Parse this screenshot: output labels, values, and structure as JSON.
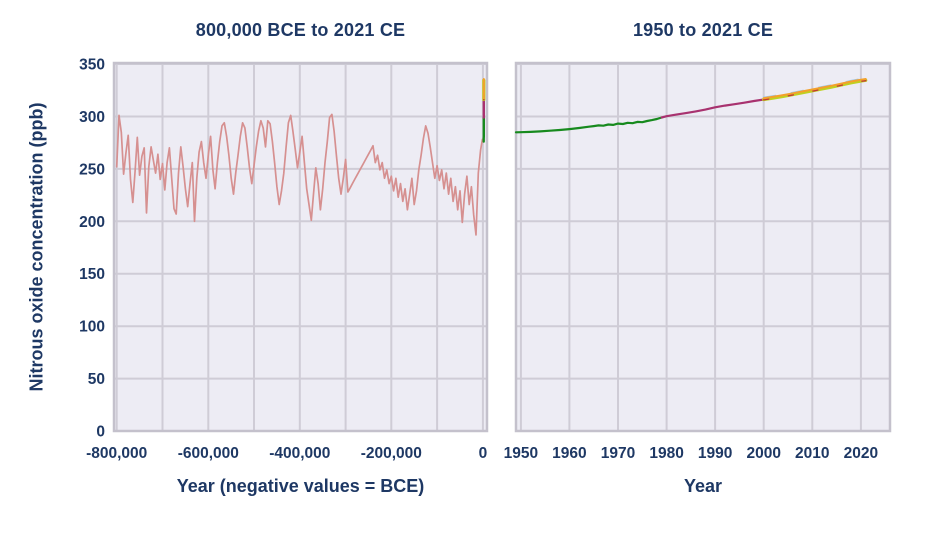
{
  "page": {
    "background": "#ffffff",
    "text_color": "#1e3864"
  },
  "series_data": {
    "ice_core": [
      [
        -800000,
        252
      ],
      [
        -795000,
        301
      ],
      [
        -790000,
        285
      ],
      [
        -785000,
        245
      ],
      [
        -780000,
        265
      ],
      [
        -775000,
        282
      ],
      [
        -770000,
        240
      ],
      [
        -765000,
        218
      ],
      [
        -760000,
        248
      ],
      [
        -755000,
        280
      ],
      [
        -750000,
        244
      ],
      [
        -745000,
        262
      ],
      [
        -740000,
        270
      ],
      [
        -735000,
        208
      ],
      [
        -730000,
        252
      ],
      [
        -725000,
        271
      ],
      [
        -720000,
        258
      ],
      [
        -715000,
        246
      ],
      [
        -710000,
        264
      ],
      [
        -705000,
        240
      ],
      [
        -700000,
        255
      ],
      [
        -695000,
        230
      ],
      [
        -690000,
        256
      ],
      [
        -685000,
        270
      ],
      [
        -680000,
        241
      ],
      [
        -675000,
        212
      ],
      [
        -670000,
        207
      ],
      [
        -665000,
        246
      ],
      [
        -660000,
        271
      ],
      [
        -655000,
        252
      ],
      [
        -650000,
        231
      ],
      [
        -645000,
        214
      ],
      [
        -640000,
        236
      ],
      [
        -635000,
        256
      ],
      [
        -630000,
        200
      ],
      [
        -625000,
        241
      ],
      [
        -620000,
        266
      ],
      [
        -615000,
        276
      ],
      [
        -610000,
        256
      ],
      [
        -605000,
        241
      ],
      [
        -600000,
        263
      ],
      [
        -595000,
        281
      ],
      [
        -590000,
        249
      ],
      [
        -585000,
        231
      ],
      [
        -580000,
        256
      ],
      [
        -575000,
        276
      ],
      [
        -570000,
        291
      ],
      [
        -565000,
        294
      ],
      [
        -560000,
        281
      ],
      [
        -555000,
        263
      ],
      [
        -550000,
        241
      ],
      [
        -545000,
        226
      ],
      [
        -540000,
        246
      ],
      [
        -535000,
        263
      ],
      [
        -530000,
        281
      ],
      [
        -525000,
        294
      ],
      [
        -520000,
        289
      ],
      [
        -515000,
        271
      ],
      [
        -510000,
        251
      ],
      [
        -505000,
        236
      ],
      [
        -500000,
        253
      ],
      [
        -495000,
        271
      ],
      [
        -490000,
        286
      ],
      [
        -485000,
        296
      ],
      [
        -480000,
        289
      ],
      [
        -475000,
        271
      ],
      [
        -470000,
        296
      ],
      [
        -465000,
        293
      ],
      [
        -460000,
        276
      ],
      [
        -455000,
        256
      ],
      [
        -450000,
        233
      ],
      [
        -445000,
        216
      ],
      [
        -440000,
        229
      ],
      [
        -435000,
        246
      ],
      [
        -430000,
        271
      ],
      [
        -425000,
        294
      ],
      [
        -420000,
        301
      ],
      [
        -415000,
        286
      ],
      [
        -410000,
        269
      ],
      [
        -405000,
        251
      ],
      [
        -400000,
        266
      ],
      [
        -395000,
        281
      ],
      [
        -390000,
        256
      ],
      [
        -385000,
        231
      ],
      [
        -380000,
        216
      ],
      [
        -375000,
        201
      ],
      [
        -370000,
        226
      ],
      [
        -365000,
        251
      ],
      [
        -360000,
        236
      ],
      [
        -355000,
        211
      ],
      [
        -350000,
        231
      ],
      [
        -345000,
        256
      ],
      [
        -340000,
        276
      ],
      [
        -335000,
        299
      ],
      [
        -330000,
        302
      ],
      [
        -325000,
        286
      ],
      [
        -320000,
        263
      ],
      [
        -315000,
        241
      ],
      [
        -310000,
        226
      ],
      [
        -305000,
        241
      ],
      [
        -300000,
        259
      ],
      [
        -295000,
        228
      ],
      [
        -290000,
        232
      ],
      [
        -285000,
        236
      ],
      [
        -280000,
        240
      ],
      [
        -275000,
        244
      ],
      [
        -270000,
        248
      ],
      [
        -265000,
        252
      ],
      [
        -260000,
        256
      ],
      [
        -255000,
        260
      ],
      [
        -250000,
        264
      ],
      [
        -245000,
        268
      ],
      [
        -240000,
        272
      ],
      [
        -235000,
        256
      ],
      [
        -230000,
        263
      ],
      [
        -225000,
        249
      ],
      [
        -220000,
        256
      ],
      [
        -215000,
        241
      ],
      [
        -210000,
        249
      ],
      [
        -205000,
        236
      ],
      [
        -200000,
        243
      ],
      [
        -195000,
        229
      ],
      [
        -190000,
        241
      ],
      [
        -185000,
        223
      ],
      [
        -180000,
        236
      ],
      [
        -175000,
        219
      ],
      [
        -170000,
        231
      ],
      [
        -165000,
        211
      ],
      [
        -160000,
        226
      ],
      [
        -155000,
        241
      ],
      [
        -150000,
        216
      ],
      [
        -145000,
        229
      ],
      [
        -140000,
        249
      ],
      [
        -135000,
        263
      ],
      [
        -130000,
        279
      ],
      [
        -125000,
        291
      ],
      [
        -120000,
        284
      ],
      [
        -115000,
        271
      ],
      [
        -110000,
        256
      ],
      [
        -105000,
        241
      ],
      [
        -100000,
        253
      ],
      [
        -95000,
        239
      ],
      [
        -90000,
        249
      ],
      [
        -85000,
        231
      ],
      [
        -80000,
        246
      ],
      [
        -75000,
        226
      ],
      [
        -70000,
        241
      ],
      [
        -65000,
        219
      ],
      [
        -60000,
        233
      ],
      [
        -55000,
        211
      ],
      [
        -50000,
        229
      ],
      [
        -45000,
        199
      ],
      [
        -40000,
        226
      ],
      [
        -35000,
        243
      ],
      [
        -30000,
        216
      ],
      [
        -25000,
        233
      ],
      [
        -20000,
        206
      ],
      [
        -15000,
        187
      ],
      [
        -10000,
        246
      ],
      [
        -5000,
        268
      ],
      [
        -1000,
        278
      ]
    ],
    "record_1755_1979": [
      [
        1755,
        276
      ],
      [
        1800,
        277.5
      ],
      [
        1850,
        279
      ],
      [
        1900,
        281
      ],
      [
        1930,
        283
      ],
      [
        1950,
        285
      ],
      [
        1960,
        288
      ],
      [
        1970,
        293
      ],
      [
        1979,
        299.5
      ]
    ],
    "record_1950_1979": [
      [
        1949,
        284.9
      ],
      [
        1950,
        285
      ],
      [
        1952,
        285.3
      ],
      [
        1954,
        285.8
      ],
      [
        1956,
        286.4
      ],
      [
        1958,
        287.1
      ],
      [
        1960,
        288
      ],
      [
        1962,
        289
      ],
      [
        1964,
        290.2
      ],
      [
        1965,
        290.8
      ],
      [
        1966,
        291.5
      ],
      [
        1967,
        291.2
      ],
      [
        1968,
        292.3
      ],
      [
        1969,
        292
      ],
      [
        1970,
        293.2
      ],
      [
        1971,
        292.8
      ],
      [
        1972,
        294
      ],
      [
        1973,
        293.6
      ],
      [
        1974,
        294.8
      ],
      [
        1975,
        294.5
      ],
      [
        1976,
        295.7
      ],
      [
        1977,
        296.5
      ],
      [
        1978,
        297.6
      ],
      [
        1979,
        299
      ]
    ],
    "record_1979_2000": [
      [
        1979,
        299
      ],
      [
        1980,
        300.3
      ],
      [
        1982,
        301.8
      ],
      [
        1984,
        303.2
      ],
      [
        1986,
        304.8
      ],
      [
        1988,
        306.6
      ],
      [
        1990,
        308.7
      ],
      [
        1992,
        310.4
      ],
      [
        1994,
        311.7
      ],
      [
        1996,
        313.1
      ],
      [
        1998,
        314.8
      ],
      [
        2000,
        316.2
      ]
    ],
    "record_2000_2021": [
      [
        2000,
        316.2
      ],
      [
        2002,
        317.6
      ],
      [
        2004,
        319.1
      ],
      [
        2006,
        320.9
      ],
      [
        2008,
        322.7
      ],
      [
        2010,
        324.5
      ],
      [
        2012,
        326.3
      ],
      [
        2014,
        328.1
      ],
      [
        2016,
        330.1
      ],
      [
        2018,
        332.1
      ],
      [
        2020,
        333.8
      ],
      [
        2021,
        334.5
      ]
    ]
  },
  "chart_data": [
    {
      "id": "left-panel",
      "type": "line",
      "title": "800,000 BCE to 2021 CE",
      "xlabel": "Year (negative values = BCE)",
      "ylabel": "Nitrous oxide concentration (ppb)",
      "xlim": [
        -806000,
        9000
      ],
      "ylim": [
        0,
        351
      ],
      "grid": true,
      "plot_bg": "#edecf4",
      "grid_color": "#cfccd6",
      "border_color": "#c4c1cc",
      "show_yticks": true,
      "xgrid": [
        -800000,
        -700000,
        -600000,
        -500000,
        -400000,
        -300000,
        -200000,
        -100000,
        0
      ],
      "ygrid": [
        0,
        50,
        100,
        150,
        200,
        250,
        300,
        350
      ],
      "xticks": [
        {
          "v": -800000,
          "label": "-800,000"
        },
        {
          "v": -600000,
          "label": "-600,000"
        },
        {
          "v": -400000,
          "label": "-400,000"
        },
        {
          "v": -200000,
          "label": "-200,000"
        },
        {
          "v": 0,
          "label": "0"
        }
      ],
      "yticks": [
        {
          "v": 0,
          "label": "0"
        },
        {
          "v": 50,
          "label": "50"
        },
        {
          "v": 100,
          "label": "100"
        },
        {
          "v": 150,
          "label": "150"
        },
        {
          "v": 200,
          "label": "200"
        },
        {
          "v": 250,
          "label": "250"
        },
        {
          "v": 300,
          "label": "300"
        },
        {
          "v": 350,
          "label": "350"
        }
      ],
      "series": [
        {
          "data": "ice_core",
          "name": "ice-core-line",
          "color": "#d69090",
          "width": 1.7
        },
        {
          "data": "record_1755_1979",
          "name": "green-record-line",
          "color": "#178a1e",
          "width": 2.4
        },
        {
          "data": "record_1979_2000",
          "name": "magenta-record-line",
          "color": "#a8326f",
          "width": 2.4
        },
        {
          "data": "record_2000_2021",
          "name": "lightblue-record-line",
          "color": "#9ec7ea",
          "width": 1.8,
          "dy": -2,
          "dash": "12 16"
        },
        {
          "data": "record_2000_2021",
          "name": "yellowgreen-record-line",
          "color": "#bfd021",
          "width": 3.2
        },
        {
          "data": "record_2000_2021",
          "name": "crimson-record-line",
          "color": "#c03a35",
          "width": 1.5,
          "dy": 0.3,
          "dash": "5 20"
        },
        {
          "data": "record_2000_2021",
          "name": "orange-record-line",
          "color": "#f3a02c",
          "width": 2,
          "dy": -1.3
        }
      ]
    },
    {
      "id": "right-panel",
      "type": "line",
      "title": "1950 to 2021 CE",
      "xlabel": "Year",
      "ylabel": "",
      "xlim": [
        1949,
        2026
      ],
      "ylim": [
        0,
        351
      ],
      "grid": true,
      "plot_bg": "#edecf4",
      "grid_color": "#cfccd6",
      "border_color": "#c4c1cc",
      "show_yticks": false,
      "xgrid": [
        1950,
        1960,
        1970,
        1980,
        1990,
        2000,
        2010,
        2020
      ],
      "ygrid": [
        0,
        50,
        100,
        150,
        200,
        250,
        300,
        350
      ],
      "xticks": [
        {
          "v": 1950,
          "label": "1950"
        },
        {
          "v": 1960,
          "label": "1960"
        },
        {
          "v": 1970,
          "label": "1970"
        },
        {
          "v": 1980,
          "label": "1980"
        },
        {
          "v": 1990,
          "label": "1990"
        },
        {
          "v": 2000,
          "label": "2000"
        },
        {
          "v": 2010,
          "label": "2010"
        },
        {
          "v": 2020,
          "label": "2020"
        }
      ],
      "yticks": [],
      "series": [
        {
          "data": "record_1950_1979",
          "name": "green-record-line",
          "color": "#178a1e",
          "width": 2.2
        },
        {
          "data": "record_1979_2000",
          "name": "magenta-record-line",
          "color": "#a8326f",
          "width": 2.2
        },
        {
          "data": "record_2000_2021",
          "name": "lightblue-record-line",
          "color": "#9ec7ea",
          "width": 1.8,
          "dy": -2,
          "dash": "12 16"
        },
        {
          "data": "record_2000_2021",
          "name": "yellowgreen-record-line",
          "color": "#bfd021",
          "width": 3.2
        },
        {
          "data": "record_2000_2021",
          "name": "crimson-record-line",
          "color": "#c03a35",
          "width": 1.5,
          "dy": 0.3,
          "dash": "5 20"
        },
        {
          "data": "record_2000_2021",
          "name": "orange-record-line",
          "color": "#f3a02c",
          "width": 2,
          "dy": -1.3
        }
      ]
    }
  ]
}
